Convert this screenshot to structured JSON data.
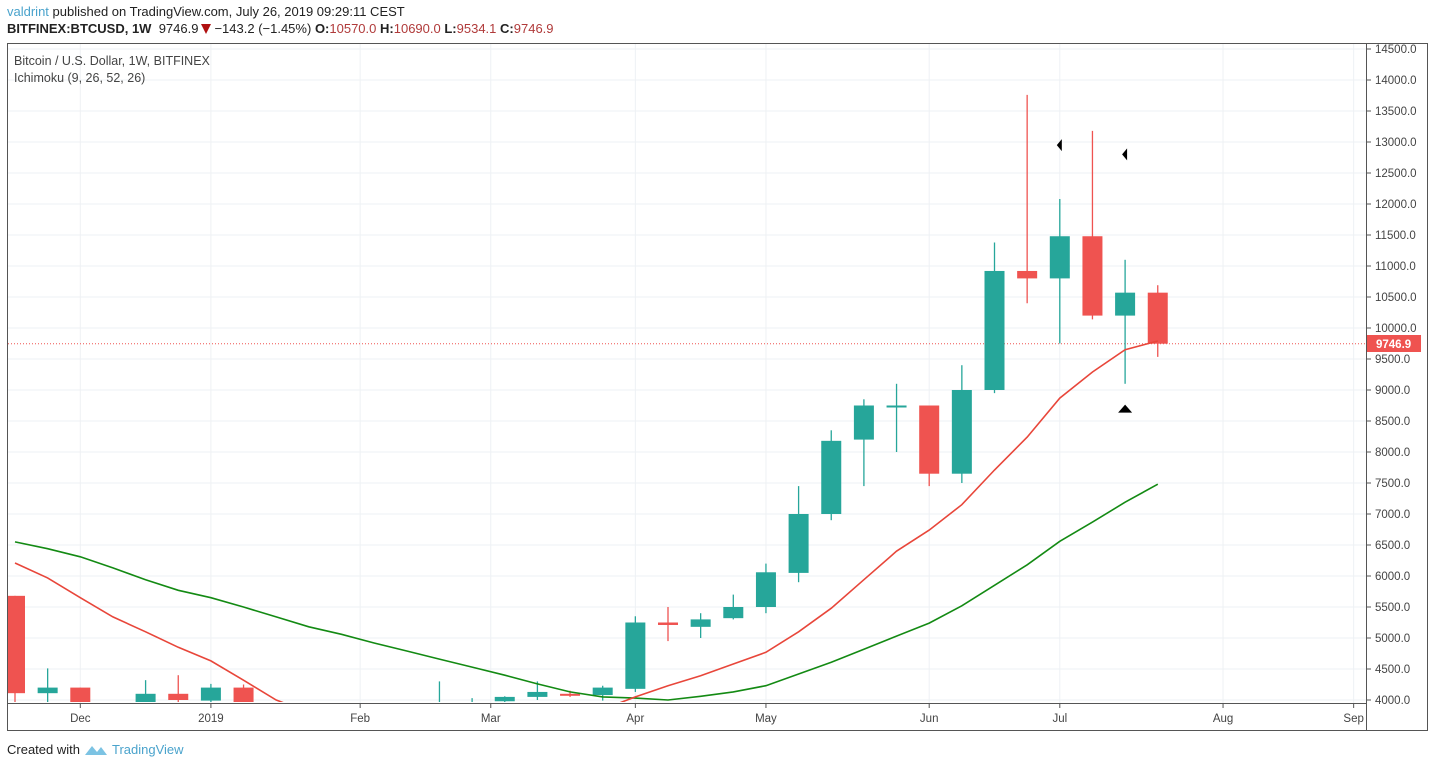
{
  "header": {
    "user": "valdrint",
    "published": " published on TradingView.com, July 26, 2019 09:29:11 CEST",
    "symbol": "BITFINEX:BTCUSD, 1W",
    "last": "9746.9",
    "change": "−143.2 (−1.45%)",
    "o_label": "O:",
    "o": "10570.0",
    "h_label": "H:",
    "h": "10690.0",
    "l_label": "L:",
    "l": "9534.1",
    "c_label": "C:",
    "c": "9746.9",
    "direction_icon": "down-triangle-icon"
  },
  "legend": {
    "title": "Bitcoin / U.S. Dollar, 1W, BITFINEX",
    "indicator": "Ichimoku (9, 26, 52, 26)"
  },
  "footer": {
    "created_with": "Created with",
    "brand": "TradingView",
    "logo_icon": "tradingview-logo-icon"
  },
  "chart_data": {
    "type": "candlestick",
    "title": "Bitcoin / U.S. Dollar, 1W, BITFINEX",
    "ylim": [
      4000,
      14500
    ],
    "y_ticks": [
      "4000.0",
      "4500.0",
      "5000.0",
      "5500.0",
      "6000.0",
      "6500.0",
      "7000.0",
      "7500.0",
      "8000.0",
      "8500.0",
      "9000.0",
      "9500.0",
      "10000.0",
      "10500.0",
      "11000.0",
      "11500.0",
      "12000.0",
      "12500.0",
      "13000.0",
      "13500.0",
      "14000.0",
      "14500.0"
    ],
    "x_ticks": [
      {
        "label": "Dec",
        "date": "2018-12-03"
      },
      {
        "label": "2019",
        "date": "2018-12-31"
      },
      {
        "label": "Feb",
        "date": "2019-02-01"
      },
      {
        "label": "Mar",
        "date": "2019-03-01"
      },
      {
        "label": "Apr",
        "date": "2019-04-01"
      },
      {
        "label": "May",
        "date": "2019-04-29"
      },
      {
        "label": "Jun",
        "date": "2019-06-03"
      },
      {
        "label": "Jul",
        "date": "2019-07-01"
      },
      {
        "label": "Aug",
        "date": "2019-08-05"
      },
      {
        "label": "Sep",
        "date": "2019-09-02"
      }
    ],
    "grid": true,
    "last_price_label": "9746.9",
    "colors": {
      "up": "#26a69a",
      "down": "#ef5350",
      "conversion_line": "#e8463a",
      "base_line": "#138a13",
      "price_line": "#ef5350"
    },
    "candles": [
      {
        "date": "2018-11-19",
        "o": 5680,
        "h": 5680,
        "l": 3950,
        "c": 4110
      },
      {
        "date": "2018-11-26",
        "o": 4110,
        "h": 4510,
        "l": 3950,
        "c": 4200
      },
      {
        "date": "2018-12-03",
        "o": 4200,
        "h": 4200,
        "l": 3700,
        "c": 3800
      },
      {
        "date": "2018-12-17",
        "o": 3950,
        "h": 4320,
        "l": 3900,
        "c": 4100
      },
      {
        "date": "2018-12-24",
        "o": 4100,
        "h": 4400,
        "l": 3950,
        "c": 4000
      },
      {
        "date": "2018-12-31",
        "o": 3990,
        "h": 4260,
        "l": 3950,
        "c": 4200
      },
      {
        "date": "2019-01-07",
        "o": 4200,
        "h": 4250,
        "l": 3700,
        "c": 3830
      },
      {
        "date": "2019-02-18",
        "o": 3900,
        "h": 4300,
        "l": 3850,
        "c": 3950
      },
      {
        "date": "2019-02-25",
        "o": 3900,
        "h": 4030,
        "l": 3850,
        "c": 3950
      },
      {
        "date": "2019-03-04",
        "o": 3980,
        "h": 4060,
        "l": 3950,
        "c": 4050
      },
      {
        "date": "2019-03-11",
        "o": 4050,
        "h": 4300,
        "l": 4000,
        "c": 4130
      },
      {
        "date": "2019-03-18",
        "o": 4100,
        "h": 4150,
        "l": 4050,
        "c": 4070
      },
      {
        "date": "2019-03-25",
        "o": 4080,
        "h": 4230,
        "l": 3990,
        "c": 4200
      },
      {
        "date": "2019-04-01",
        "o": 4180,
        "h": 5350,
        "l": 4130,
        "c": 5250
      },
      {
        "date": "2019-04-08",
        "o": 5250,
        "h": 5500,
        "l": 4950,
        "c": 5210
      },
      {
        "date": "2019-04-15",
        "o": 5180,
        "h": 5400,
        "l": 5000,
        "c": 5300
      },
      {
        "date": "2019-04-22",
        "o": 5320,
        "h": 5700,
        "l": 5300,
        "c": 5500
      },
      {
        "date": "2019-04-29",
        "o": 5500,
        "h": 6200,
        "l": 5400,
        "c": 6060
      },
      {
        "date": "2019-05-06",
        "o": 6050,
        "h": 7450,
        "l": 5900,
        "c": 7000
      },
      {
        "date": "2019-05-13",
        "o": 7000,
        "h": 8350,
        "l": 6900,
        "c": 8180
      },
      {
        "date": "2019-05-20",
        "o": 8200,
        "h": 8850,
        "l": 7450,
        "c": 8750
      },
      {
        "date": "2019-05-27",
        "o": 8730,
        "h": 9100,
        "l": 8000,
        "c": 8750
      },
      {
        "date": "2019-06-03",
        "o": 8750,
        "h": 8750,
        "l": 7450,
        "c": 7650
      },
      {
        "date": "2019-06-10",
        "o": 7650,
        "h": 9400,
        "l": 7500,
        "c": 9000
      },
      {
        "date": "2019-06-17",
        "o": 9000,
        "h": 11380,
        "l": 8950,
        "c": 10920
      },
      {
        "date": "2019-06-24",
        "o": 10920,
        "h": 13760,
        "l": 10400,
        "c": 10800
      },
      {
        "date": "2019-07-01",
        "o": 10800,
        "h": 12080,
        "l": 9750,
        "c": 11480
      },
      {
        "date": "2019-07-08",
        "o": 11480,
        "h": 13180,
        "l": 10140,
        "c": 10200
      },
      {
        "date": "2019-07-15",
        "o": 10200,
        "h": 11100,
        "l": 9100,
        "c": 10570
      },
      {
        "date": "2019-07-22",
        "o": 10570,
        "h": 10690,
        "l": 9534.1,
        "c": 9746.9
      }
    ],
    "conversion_line": [
      {
        "date": "2018-11-19",
        "y": 6210
      },
      {
        "date": "2018-11-26",
        "y": 5970
      },
      {
        "date": "2018-12-03",
        "y": 5650
      },
      {
        "date": "2018-12-10",
        "y": 5340
      },
      {
        "date": "2018-12-17",
        "y": 5100
      },
      {
        "date": "2018-12-24",
        "y": 4850
      },
      {
        "date": "2018-12-31",
        "y": 4630
      },
      {
        "date": "2019-01-07",
        "y": 4320
      },
      {
        "date": "2019-01-14",
        "y": 4000
      },
      {
        "date": "2019-01-21",
        "y": 3800
      },
      {
        "date": "2019-03-25",
        "y": 3850
      },
      {
        "date": "2019-04-01",
        "y": 4050
      },
      {
        "date": "2019-04-08",
        "y": 4230
      },
      {
        "date": "2019-04-15",
        "y": 4390
      },
      {
        "date": "2019-04-22",
        "y": 4580
      },
      {
        "date": "2019-04-29",
        "y": 4770
      },
      {
        "date": "2019-05-06",
        "y": 5100
      },
      {
        "date": "2019-05-13",
        "y": 5480
      },
      {
        "date": "2019-05-20",
        "y": 5940
      },
      {
        "date": "2019-05-27",
        "y": 6400
      },
      {
        "date": "2019-06-03",
        "y": 6740
      },
      {
        "date": "2019-06-10",
        "y": 7150
      },
      {
        "date": "2019-06-17",
        "y": 7710
      },
      {
        "date": "2019-06-24",
        "y": 8240
      },
      {
        "date": "2019-07-01",
        "y": 8870
      },
      {
        "date": "2019-07-08",
        "y": 9290
      },
      {
        "date": "2019-07-15",
        "y": 9650
      },
      {
        "date": "2019-07-22",
        "y": 9790
      }
    ],
    "base_line": [
      {
        "date": "2018-11-19",
        "y": 6550
      },
      {
        "date": "2018-11-26",
        "y": 6440
      },
      {
        "date": "2018-12-03",
        "y": 6310
      },
      {
        "date": "2018-12-10",
        "y": 6130
      },
      {
        "date": "2018-12-17",
        "y": 5940
      },
      {
        "date": "2018-12-24",
        "y": 5770
      },
      {
        "date": "2018-12-31",
        "y": 5650
      },
      {
        "date": "2019-01-07",
        "y": 5500
      },
      {
        "date": "2019-01-14",
        "y": 5340
      },
      {
        "date": "2019-01-21",
        "y": 5180
      },
      {
        "date": "2019-01-28",
        "y": 5060
      },
      {
        "date": "2019-02-04",
        "y": 4920
      },
      {
        "date": "2019-02-11",
        "y": 4790
      },
      {
        "date": "2019-02-18",
        "y": 4660
      },
      {
        "date": "2019-02-25",
        "y": 4530
      },
      {
        "date": "2019-03-04",
        "y": 4400
      },
      {
        "date": "2019-03-11",
        "y": 4260
      },
      {
        "date": "2019-03-18",
        "y": 4130
      },
      {
        "date": "2019-03-25",
        "y": 4050
      },
      {
        "date": "2019-04-01",
        "y": 4030
      },
      {
        "date": "2019-04-08",
        "y": 4000
      },
      {
        "date": "2019-04-15",
        "y": 4060
      },
      {
        "date": "2019-04-22",
        "y": 4130
      },
      {
        "date": "2019-04-29",
        "y": 4230
      },
      {
        "date": "2019-05-06",
        "y": 4420
      },
      {
        "date": "2019-05-13",
        "y": 4610
      },
      {
        "date": "2019-05-20",
        "y": 4820
      },
      {
        "date": "2019-05-27",
        "y": 5030
      },
      {
        "date": "2019-06-03",
        "y": 5240
      },
      {
        "date": "2019-06-10",
        "y": 5520
      },
      {
        "date": "2019-06-17",
        "y": 5850
      },
      {
        "date": "2019-06-24",
        "y": 6180
      },
      {
        "date": "2019-07-01",
        "y": 6560
      },
      {
        "date": "2019-07-08",
        "y": 6870
      },
      {
        "date": "2019-07-15",
        "y": 7190
      },
      {
        "date": "2019-07-22",
        "y": 7480
      }
    ],
    "markers": [
      {
        "date": "2019-07-01",
        "y": 12950,
        "shape": "left-triangle"
      },
      {
        "date": "2019-07-15",
        "y": 12800,
        "shape": "left-triangle"
      },
      {
        "date": "2019-07-15",
        "y": 8700,
        "shape": "up-triangle"
      }
    ]
  }
}
